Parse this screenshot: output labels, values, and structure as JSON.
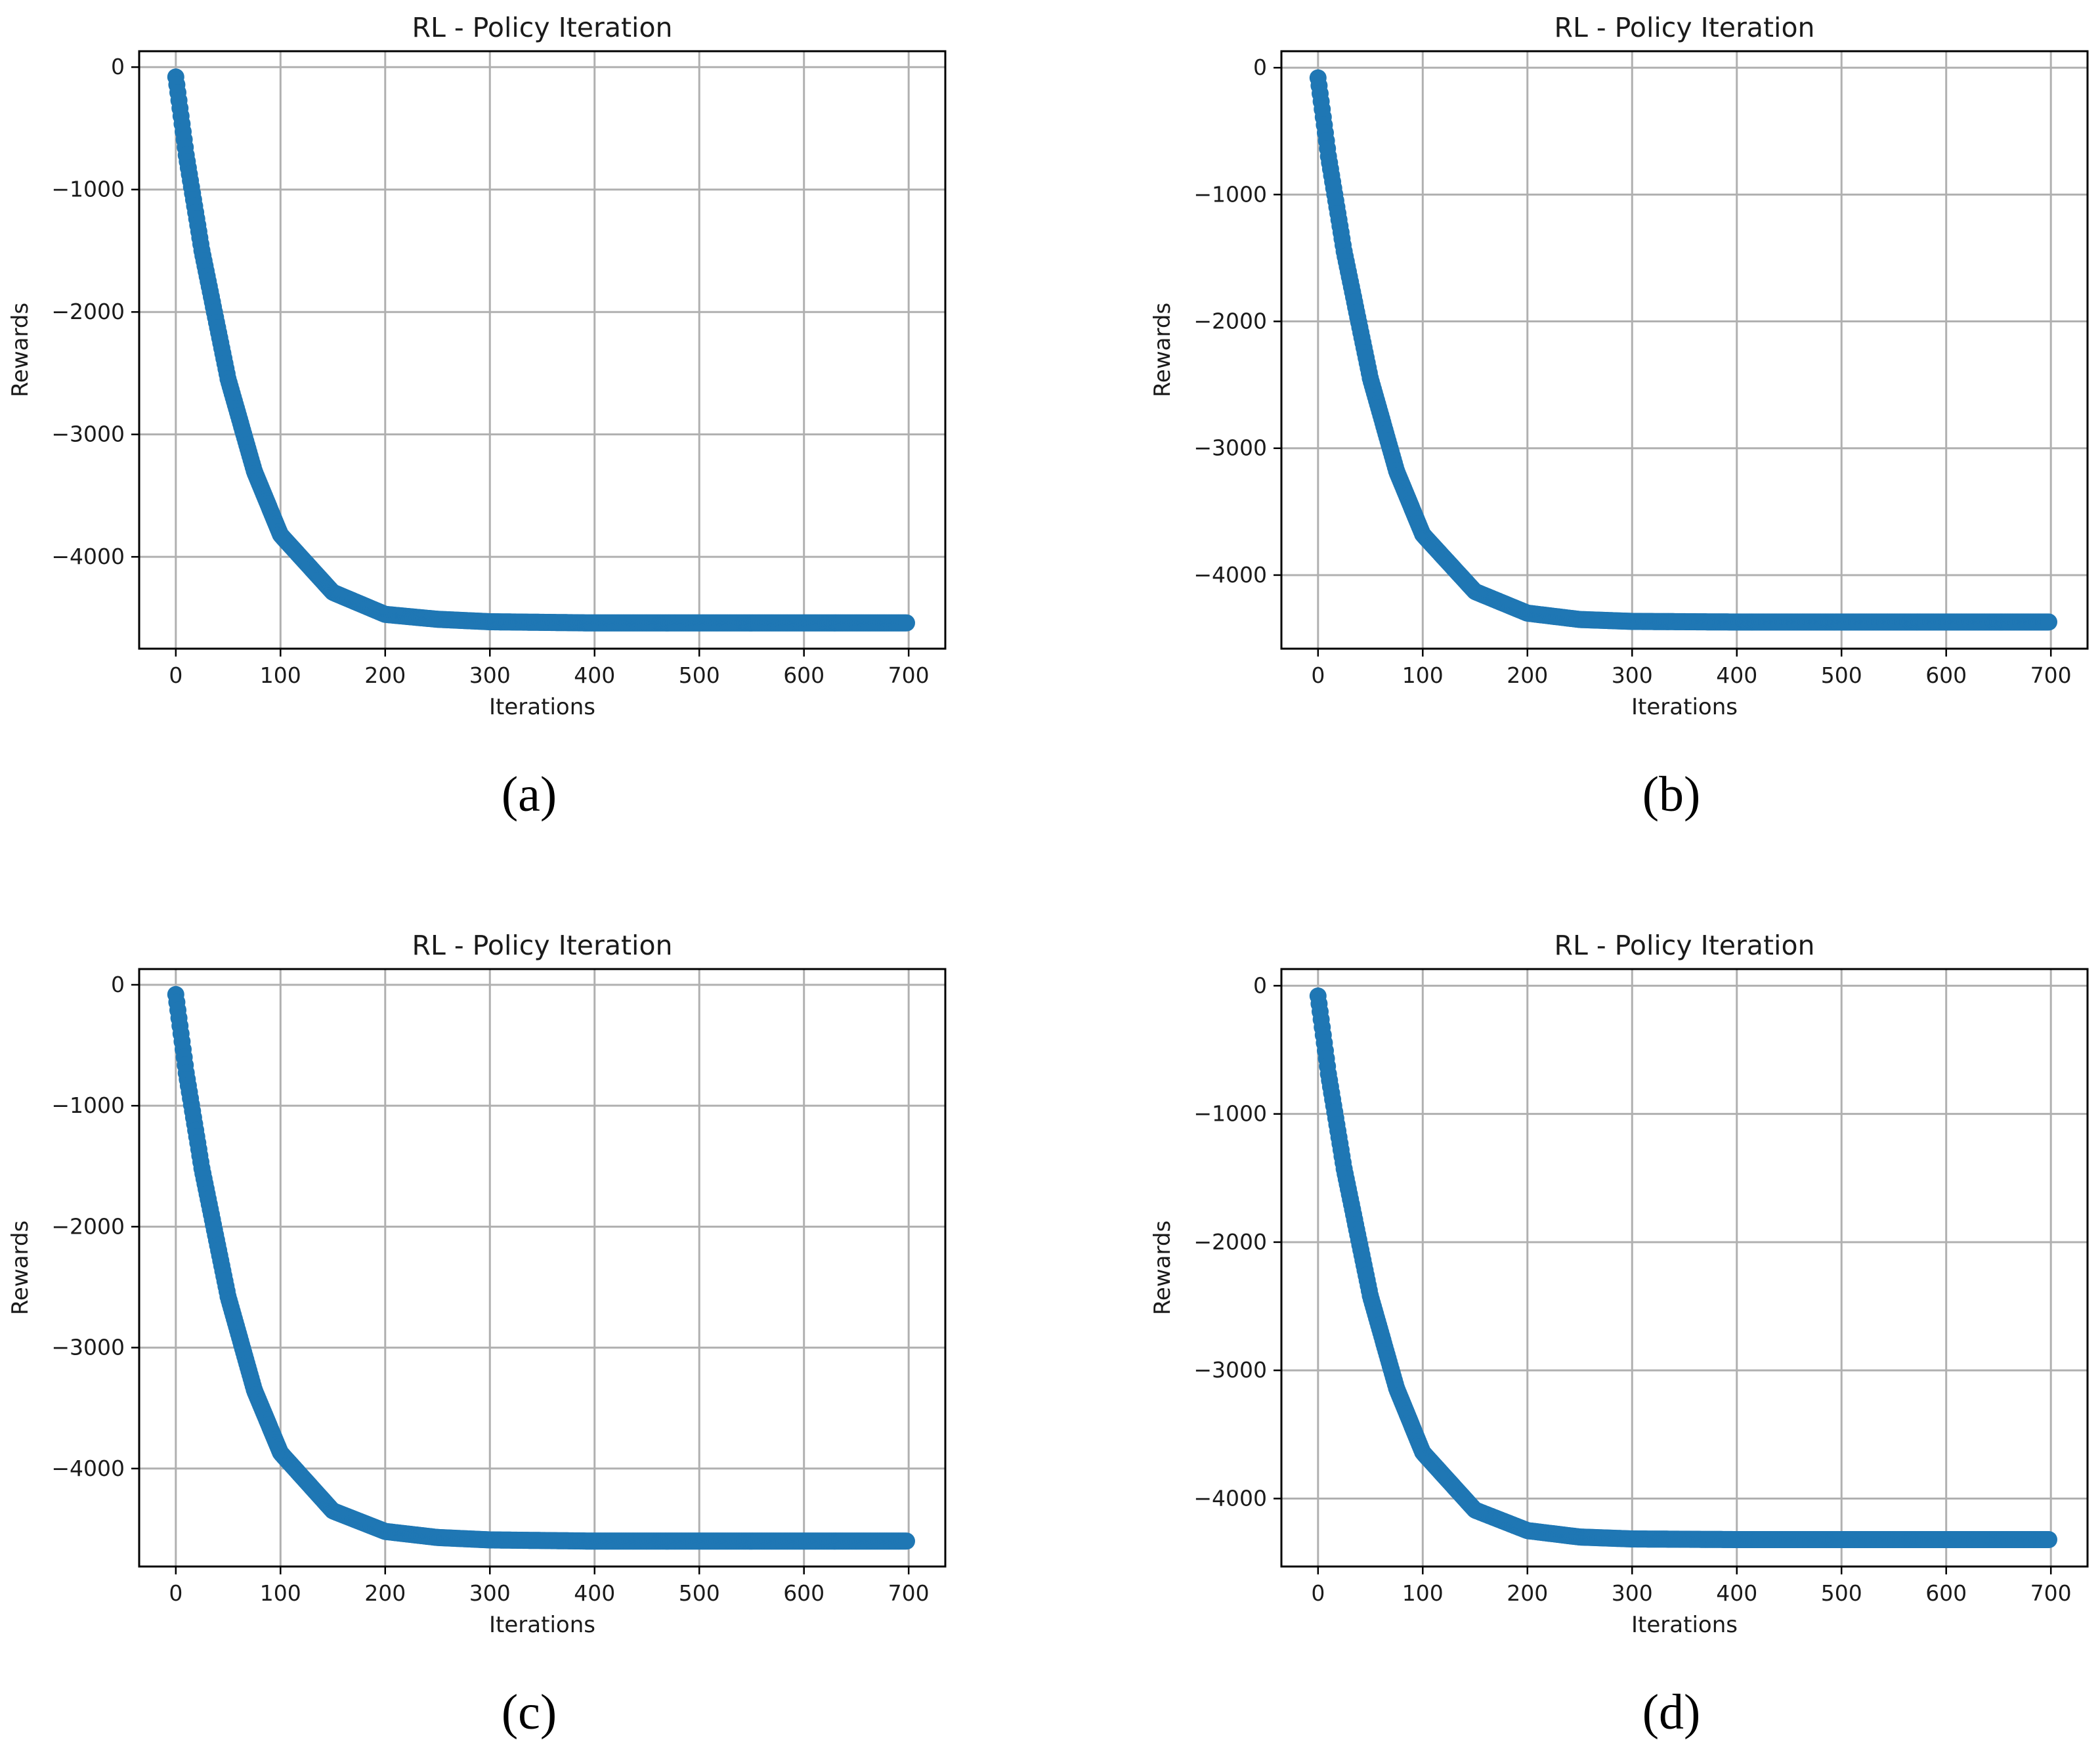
{
  "colors": {
    "series": "#1f77b4",
    "grid": "#b0b0b0",
    "axes": "#000000",
    "background": "#ffffff"
  },
  "chart_data": [
    {
      "panel_label": "a",
      "caption": "(a)",
      "type": "scatter",
      "title": "RL - Policy Iteration",
      "xlabel": "Iterations",
      "ylabel": "Rewards",
      "xlim": [
        -35,
        735
      ],
      "ylim": [
        -4750,
        130
      ],
      "x_ticks": [
        0,
        100,
        200,
        300,
        400,
        500,
        600,
        700
      ],
      "x_tick_labels": [
        "0",
        "100",
        "200",
        "300",
        "400",
        "500",
        "600",
        "700"
      ],
      "y_ticks": [
        0,
        -1000,
        -2000,
        -3000,
        -4000
      ],
      "y_tick_labels": [
        "0",
        "−1000",
        "−2000",
        "−3000",
        "−4000"
      ],
      "grid": true,
      "series": [
        {
          "name": "rewards",
          "marker": "circle",
          "n_points": 700,
          "start": {
            "x": 0,
            "y": -80
          },
          "end": {
            "x": 698,
            "y": -4540
          },
          "points": [
            {
              "x": 0,
              "y": -80
            },
            {
              "x": 10,
              "y": -720
            },
            {
              "x": 25,
              "y": -1500
            },
            {
              "x": 50,
              "y": -2550
            },
            {
              "x": 75,
              "y": -3300
            },
            {
              "x": 100,
              "y": -3820
            },
            {
              "x": 150,
              "y": -4290
            },
            {
              "x": 200,
              "y": -4470
            },
            {
              "x": 250,
              "y": -4510
            },
            {
              "x": 300,
              "y": -4530
            },
            {
              "x": 400,
              "y": -4540
            },
            {
              "x": 500,
              "y": -4540
            },
            {
              "x": 600,
              "y": -4540
            },
            {
              "x": 698,
              "y": -4540
            }
          ]
        }
      ]
    },
    {
      "panel_label": "b",
      "caption": "(b)",
      "type": "scatter",
      "title": "RL - Policy Iteration",
      "xlabel": "Iterations",
      "ylabel": "Rewards",
      "xlim": [
        -35,
        735
      ],
      "ylim": [
        -4580,
        130
      ],
      "x_ticks": [
        0,
        100,
        200,
        300,
        400,
        500,
        600,
        700
      ],
      "x_tick_labels": [
        "0",
        "100",
        "200",
        "300",
        "400",
        "500",
        "600",
        "700"
      ],
      "y_ticks": [
        0,
        -1000,
        -2000,
        -3000,
        -4000
      ],
      "y_tick_labels": [
        "0",
        "−1000",
        "−2000",
        "−3000",
        "−4000"
      ],
      "grid": true,
      "series": [
        {
          "name": "rewards",
          "marker": "circle",
          "n_points": 700,
          "start": {
            "x": 0,
            "y": -80
          },
          "end": {
            "x": 698,
            "y": -4370
          },
          "points": [
            {
              "x": 0,
              "y": -80
            },
            {
              "x": 10,
              "y": -700
            },
            {
              "x": 25,
              "y": -1450
            },
            {
              "x": 50,
              "y": -2450
            },
            {
              "x": 75,
              "y": -3180
            },
            {
              "x": 100,
              "y": -3680
            },
            {
              "x": 150,
              "y": -4130
            },
            {
              "x": 200,
              "y": -4300
            },
            {
              "x": 250,
              "y": -4350
            },
            {
              "x": 300,
              "y": -4365
            },
            {
              "x": 400,
              "y": -4370
            },
            {
              "x": 500,
              "y": -4370
            },
            {
              "x": 600,
              "y": -4370
            },
            {
              "x": 698,
              "y": -4370
            }
          ]
        }
      ]
    },
    {
      "panel_label": "c",
      "caption": "(c)",
      "type": "scatter",
      "title": "RL - Policy Iteration",
      "xlabel": "Iterations",
      "ylabel": "Rewards",
      "xlim": [
        -35,
        735
      ],
      "ylim": [
        -4810,
        130
      ],
      "x_ticks": [
        0,
        100,
        200,
        300,
        400,
        500,
        600,
        700
      ],
      "x_tick_labels": [
        "0",
        "100",
        "200",
        "300",
        "400",
        "500",
        "600",
        "700"
      ],
      "y_ticks": [
        0,
        -1000,
        -2000,
        -3000,
        -4000
      ],
      "y_tick_labels": [
        "0",
        "−1000",
        "−2000",
        "−3000",
        "−4000"
      ],
      "grid": true,
      "series": [
        {
          "name": "rewards",
          "marker": "circle",
          "n_points": 700,
          "start": {
            "x": 0,
            "y": -80
          },
          "end": {
            "x": 698,
            "y": -4600
          },
          "points": [
            {
              "x": 0,
              "y": -80
            },
            {
              "x": 10,
              "y": -730
            },
            {
              "x": 25,
              "y": -1520
            },
            {
              "x": 50,
              "y": -2580
            },
            {
              "x": 75,
              "y": -3350
            },
            {
              "x": 100,
              "y": -3870
            },
            {
              "x": 150,
              "y": -4350
            },
            {
              "x": 200,
              "y": -4520
            },
            {
              "x": 250,
              "y": -4570
            },
            {
              "x": 300,
              "y": -4590
            },
            {
              "x": 400,
              "y": -4600
            },
            {
              "x": 500,
              "y": -4600
            },
            {
              "x": 600,
              "y": -4600
            },
            {
              "x": 698,
              "y": -4600
            }
          ]
        }
      ]
    },
    {
      "panel_label": "d",
      "caption": "(d)",
      "type": "scatter",
      "title": "RL - Policy Iteration",
      "xlabel": "Iterations",
      "ylabel": "Rewards",
      "xlim": [
        -35,
        735
      ],
      "ylim": [
        -4530,
        130
      ],
      "x_ticks": [
        0,
        100,
        200,
        300,
        400,
        500,
        600,
        700
      ],
      "x_tick_labels": [
        "0",
        "100",
        "200",
        "300",
        "400",
        "500",
        "600",
        "700"
      ],
      "y_ticks": [
        0,
        -1000,
        -2000,
        -3000,
        -4000
      ],
      "y_tick_labels": [
        "0",
        "−1000",
        "−2000",
        "−3000",
        "−4000"
      ],
      "grid": true,
      "series": [
        {
          "name": "rewards",
          "marker": "circle",
          "n_points": 700,
          "start": {
            "x": 0,
            "y": -80
          },
          "end": {
            "x": 698,
            "y": -4320
          },
          "points": [
            {
              "x": 0,
              "y": -80
            },
            {
              "x": 10,
              "y": -690
            },
            {
              "x": 25,
              "y": -1430
            },
            {
              "x": 50,
              "y": -2420
            },
            {
              "x": 75,
              "y": -3140
            },
            {
              "x": 100,
              "y": -3640
            },
            {
              "x": 150,
              "y": -4090
            },
            {
              "x": 200,
              "y": -4250
            },
            {
              "x": 250,
              "y": -4300
            },
            {
              "x": 300,
              "y": -4315
            },
            {
              "x": 400,
              "y": -4320
            },
            {
              "x": 500,
              "y": -4320
            },
            {
              "x": 600,
              "y": -4320
            },
            {
              "x": 698,
              "y": -4320
            }
          ]
        }
      ]
    }
  ]
}
